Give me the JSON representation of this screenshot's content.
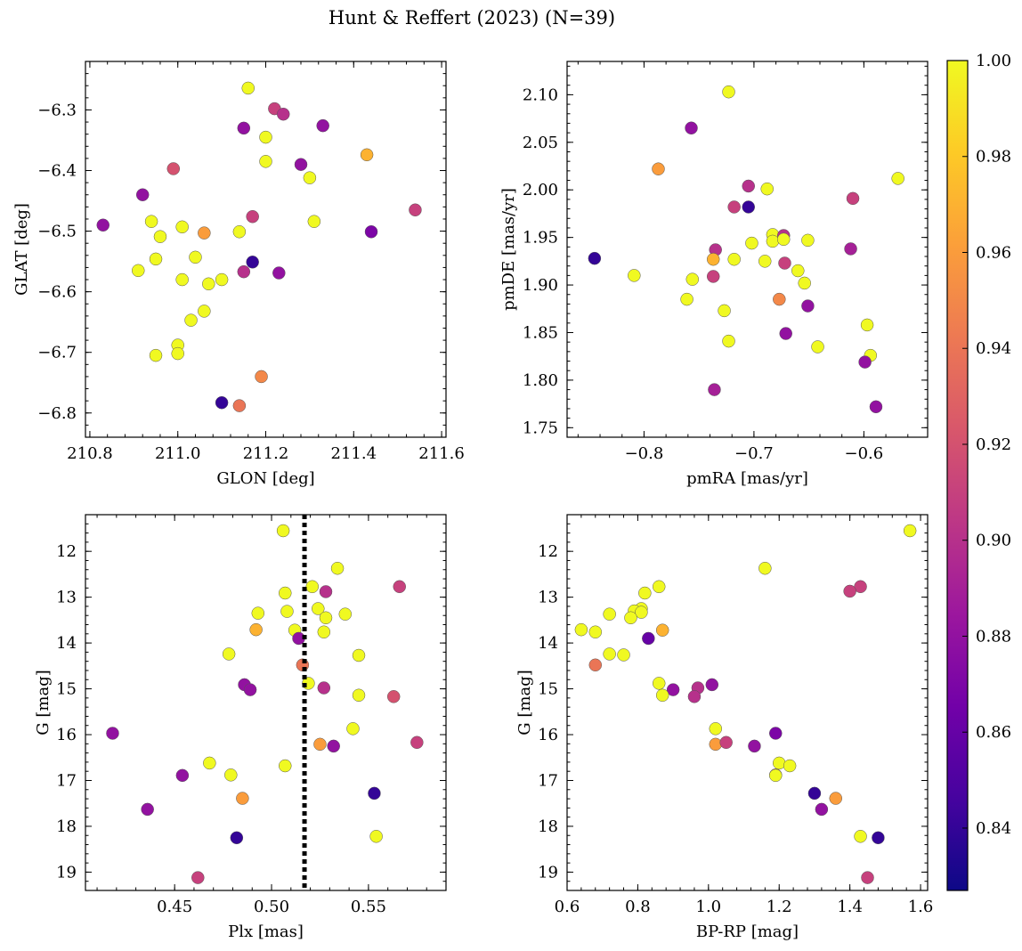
{
  "figure": {
    "title": "Hunt & Reffert (2023) (N=39)",
    "colormap": "plasma",
    "colorbar": {
      "range": [
        0.827,
        1.0
      ],
      "ticks": [
        "0.84",
        "0.86",
        "0.88",
        "0.90",
        "0.92",
        "0.94",
        "0.96",
        "0.98",
        "1.00"
      ],
      "stops": [
        "#0d0887",
        "#46039f",
        "#7201a8",
        "#9c179e",
        "#bd3786",
        "#d8576b",
        "#ed7953",
        "#fb9f3a",
        "#fdca26",
        "#f0f921"
      ]
    }
  },
  "chart_data": [
    {
      "type": "scatter",
      "xlabel": "GLON [deg]",
      "ylabel": "GLAT [deg]",
      "xlim": [
        210.79,
        211.61
      ],
      "ylim": [
        -6.84,
        -6.22
      ],
      "y_inverted": false,
      "xticks": [
        "210.8",
        "211.0",
        "211.2",
        "211.4",
        "211.6"
      ],
      "yticks": [
        "−6.3",
        "−6.4",
        "−6.5",
        "−6.6",
        "−6.7",
        "−6.8"
      ],
      "points": [
        {
          "x": 210.83,
          "y": -6.49,
          "c": 0.88
        },
        {
          "x": 210.92,
          "y": -6.44,
          "c": 0.88
        },
        {
          "x": 210.99,
          "y": -6.397,
          "c": 0.92
        },
        {
          "x": 211.15,
          "y": -6.33,
          "c": 0.88
        },
        {
          "x": 211.16,
          "y": -6.264,
          "c": 1.0
        },
        {
          "x": 211.22,
          "y": -6.298,
          "c": 0.91
        },
        {
          "x": 211.24,
          "y": -6.307,
          "c": 0.9
        },
        {
          "x": 211.33,
          "y": -6.326,
          "c": 0.88
        },
        {
          "x": 211.2,
          "y": -6.345,
          "c": 1.0
        },
        {
          "x": 211.2,
          "y": -6.385,
          "c": 1.0
        },
        {
          "x": 211.28,
          "y": -6.39,
          "c": 0.88
        },
        {
          "x": 211.3,
          "y": -6.412,
          "c": 1.0
        },
        {
          "x": 211.43,
          "y": -6.374,
          "c": 0.97
        },
        {
          "x": 211.54,
          "y": -6.465,
          "c": 0.91
        },
        {
          "x": 211.44,
          "y": -6.501,
          "c": 0.87
        },
        {
          "x": 211.31,
          "y": -6.484,
          "c": 1.0
        },
        {
          "x": 211.17,
          "y": -6.476,
          "c": 0.91
        },
        {
          "x": 211.17,
          "y": -6.551,
          "c": 0.84
        },
        {
          "x": 211.14,
          "y": -6.501,
          "c": 1.0
        },
        {
          "x": 211.23,
          "y": -6.569,
          "c": 0.88
        },
        {
          "x": 211.15,
          "y": -6.567,
          "c": 0.9
        },
        {
          "x": 211.06,
          "y": -6.503,
          "c": 0.96
        },
        {
          "x": 211.01,
          "y": -6.493,
          "c": 1.0
        },
        {
          "x": 211.04,
          "y": -6.543,
          "c": 1.0
        },
        {
          "x": 210.94,
          "y": -6.484,
          "c": 1.0
        },
        {
          "x": 210.96,
          "y": -6.509,
          "c": 1.0
        },
        {
          "x": 210.95,
          "y": -6.546,
          "c": 1.0
        },
        {
          "x": 210.91,
          "y": -6.565,
          "c": 1.0
        },
        {
          "x": 211.01,
          "y": -6.58,
          "c": 1.0
        },
        {
          "x": 211.07,
          "y": -6.587,
          "c": 1.0
        },
        {
          "x": 211.1,
          "y": -6.58,
          "c": 1.0
        },
        {
          "x": 211.06,
          "y": -6.632,
          "c": 1.0
        },
        {
          "x": 211.03,
          "y": -6.647,
          "c": 1.0
        },
        {
          "x": 211.0,
          "y": -6.688,
          "c": 1.0
        },
        {
          "x": 211.0,
          "y": -6.702,
          "c": 1.0
        },
        {
          "x": 210.95,
          "y": -6.705,
          "c": 1.0
        },
        {
          "x": 211.19,
          "y": -6.74,
          "c": 0.95
        },
        {
          "x": 211.1,
          "y": -6.783,
          "c": 0.84
        },
        {
          "x": 211.14,
          "y": -6.788,
          "c": 0.94
        }
      ]
    },
    {
      "type": "scatter",
      "xlabel": "pmRA [mas/yr]",
      "ylabel": "pmDE [mas/yr]",
      "xlim": [
        -0.87,
        -0.542
      ],
      "ylim": [
        1.74,
        2.135
      ],
      "y_inverted": false,
      "xticks": [
        "−0.8",
        "−0.7",
        "−0.6"
      ],
      "yticks": [
        "1.75",
        "1.80",
        "1.85",
        "1.90",
        "1.95",
        "2.00",
        "2.05",
        "2.10"
      ],
      "points": [
        {
          "x": -0.845,
          "y": 1.928,
          "c": 0.84
        },
        {
          "x": -0.809,
          "y": 1.91,
          "c": 1.0
        },
        {
          "x": -0.787,
          "y": 2.022,
          "c": 0.96
        },
        {
          "x": -0.757,
          "y": 2.065,
          "c": 0.88
        },
        {
          "x": -0.723,
          "y": 2.103,
          "c": 1.0
        },
        {
          "x": -0.705,
          "y": 2.004,
          "c": 0.9
        },
        {
          "x": -0.688,
          "y": 2.001,
          "c": 1.0
        },
        {
          "x": -0.718,
          "y": 1.982,
          "c": 0.91
        },
        {
          "x": -0.705,
          "y": 1.982,
          "c": 0.84
        },
        {
          "x": -0.735,
          "y": 1.937,
          "c": 0.9
        },
        {
          "x": -0.702,
          "y": 1.944,
          "c": 1.0
        },
        {
          "x": -0.683,
          "y": 1.953,
          "c": 1.0
        },
        {
          "x": -0.673,
          "y": 1.952,
          "c": 0.9
        },
        {
          "x": -0.683,
          "y": 1.946,
          "c": 1.0
        },
        {
          "x": -0.673,
          "y": 1.948,
          "c": 1.0
        },
        {
          "x": -0.651,
          "y": 1.947,
          "c": 1.0
        },
        {
          "x": -0.737,
          "y": 1.927,
          "c": 0.97
        },
        {
          "x": -0.718,
          "y": 1.927,
          "c": 1.0
        },
        {
          "x": -0.69,
          "y": 1.925,
          "c": 1.0
        },
        {
          "x": -0.672,
          "y": 1.923,
          "c": 0.91
        },
        {
          "x": -0.737,
          "y": 1.909,
          "c": 0.91
        },
        {
          "x": -0.756,
          "y": 1.906,
          "c": 1.0
        },
        {
          "x": -0.761,
          "y": 1.885,
          "c": 1.0
        },
        {
          "x": -0.677,
          "y": 1.885,
          "c": 0.95
        },
        {
          "x": -0.66,
          "y": 1.915,
          "c": 1.0
        },
        {
          "x": -0.654,
          "y": 1.902,
          "c": 1.0
        },
        {
          "x": -0.727,
          "y": 1.873,
          "c": 1.0
        },
        {
          "x": -0.651,
          "y": 1.878,
          "c": 0.88
        },
        {
          "x": -0.671,
          "y": 1.849,
          "c": 0.88
        },
        {
          "x": -0.723,
          "y": 1.841,
          "c": 1.0
        },
        {
          "x": -0.642,
          "y": 1.835,
          "c": 1.0
        },
        {
          "x": -0.61,
          "y": 1.991,
          "c": 0.91
        },
        {
          "x": -0.569,
          "y": 2.012,
          "c": 1.0
        },
        {
          "x": -0.612,
          "y": 1.938,
          "c": 0.89
        },
        {
          "x": -0.597,
          "y": 1.858,
          "c": 1.0
        },
        {
          "x": -0.594,
          "y": 1.826,
          "c": 1.0
        },
        {
          "x": -0.599,
          "y": 1.819,
          "c": 0.88
        },
        {
          "x": -0.736,
          "y": 1.79,
          "c": 0.89
        },
        {
          "x": -0.589,
          "y": 1.772,
          "c": 0.88
        }
      ]
    },
    {
      "type": "scatter",
      "xlabel": "Plx [mas]",
      "ylabel": "G [mag]",
      "xlim": [
        0.404,
        0.59
      ],
      "ylim": [
        19.4,
        11.2
      ],
      "y_inverted": true,
      "vline": 0.517,
      "xticks": [
        "0.45",
        "0.50",
        "0.55"
      ],
      "yticks": [
        "12",
        "13",
        "14",
        "15",
        "16",
        "17",
        "18",
        "19"
      ],
      "points": [
        {
          "x": 0.506,
          "y": 11.55,
          "c": 1.0
        },
        {
          "x": 0.534,
          "y": 12.37,
          "c": 1.0
        },
        {
          "x": 0.521,
          "y": 12.77,
          "c": 1.0
        },
        {
          "x": 0.566,
          "y": 12.77,
          "c": 0.91
        },
        {
          "x": 0.507,
          "y": 12.91,
          "c": 1.0
        },
        {
          "x": 0.528,
          "y": 12.88,
          "c": 0.9
        },
        {
          "x": 0.524,
          "y": 13.25,
          "c": 1.0
        },
        {
          "x": 0.508,
          "y": 13.31,
          "c": 1.0
        },
        {
          "x": 0.493,
          "y": 13.35,
          "c": 1.0
        },
        {
          "x": 0.538,
          "y": 13.37,
          "c": 1.0
        },
        {
          "x": 0.528,
          "y": 13.45,
          "c": 1.0
        },
        {
          "x": 0.492,
          "y": 13.71,
          "c": 0.97
        },
        {
          "x": 0.512,
          "y": 13.72,
          "c": 1.0
        },
        {
          "x": 0.527,
          "y": 13.76,
          "c": 1.0
        },
        {
          "x": 0.514,
          "y": 13.9,
          "c": 0.88
        },
        {
          "x": 0.478,
          "y": 14.24,
          "c": 1.0
        },
        {
          "x": 0.545,
          "y": 14.27,
          "c": 1.0
        },
        {
          "x": 0.516,
          "y": 14.48,
          "c": 0.94
        },
        {
          "x": 0.519,
          "y": 14.88,
          "c": 1.0
        },
        {
          "x": 0.486,
          "y": 14.91,
          "c": 0.88
        },
        {
          "x": 0.489,
          "y": 15.02,
          "c": 0.88
        },
        {
          "x": 0.527,
          "y": 14.98,
          "c": 0.9
        },
        {
          "x": 0.545,
          "y": 15.14,
          "c": 1.0
        },
        {
          "x": 0.563,
          "y": 15.17,
          "c": 0.92
        },
        {
          "x": 0.542,
          "y": 15.87,
          "c": 1.0
        },
        {
          "x": 0.418,
          "y": 15.97,
          "c": 0.88
        },
        {
          "x": 0.575,
          "y": 16.17,
          "c": 0.91
        },
        {
          "x": 0.525,
          "y": 16.21,
          "c": 0.96
        },
        {
          "x": 0.532,
          "y": 16.25,
          "c": 0.88
        },
        {
          "x": 0.468,
          "y": 16.62,
          "c": 1.0
        },
        {
          "x": 0.507,
          "y": 16.68,
          "c": 1.0
        },
        {
          "x": 0.454,
          "y": 16.89,
          "c": 0.88
        },
        {
          "x": 0.479,
          "y": 16.88,
          "c": 1.0
        },
        {
          "x": 0.485,
          "y": 17.39,
          "c": 0.96
        },
        {
          "x": 0.553,
          "y": 17.28,
          "c": 0.84
        },
        {
          "x": 0.436,
          "y": 17.63,
          "c": 0.88
        },
        {
          "x": 0.482,
          "y": 18.25,
          "c": 0.84
        },
        {
          "x": 0.554,
          "y": 18.22,
          "c": 1.0
        },
        {
          "x": 0.462,
          "y": 19.12,
          "c": 0.91
        }
      ]
    },
    {
      "type": "scatter",
      "xlabel": "BP-RP [mag]",
      "ylabel": "G [mag]",
      "xlim": [
        0.6,
        1.62
      ],
      "ylim": [
        19.4,
        11.2
      ],
      "y_inverted": true,
      "xticks": [
        "0.6",
        "0.8",
        "1.0",
        "1.2",
        "1.4",
        "1.6"
      ],
      "yticks": [
        "12",
        "13",
        "14",
        "15",
        "16",
        "17",
        "18",
        "19"
      ],
      "points": [
        {
          "x": 1.57,
          "y": 11.55,
          "c": 1.0
        },
        {
          "x": 1.16,
          "y": 12.37,
          "c": 1.0
        },
        {
          "x": 1.43,
          "y": 12.77,
          "c": 0.91
        },
        {
          "x": 1.4,
          "y": 12.87,
          "c": 0.91
        },
        {
          "x": 0.86,
          "y": 12.77,
          "c": 1.0
        },
        {
          "x": 0.82,
          "y": 12.91,
          "c": 1.0
        },
        {
          "x": 0.81,
          "y": 13.25,
          "c": 1.0
        },
        {
          "x": 0.79,
          "y": 13.3,
          "c": 1.0
        },
        {
          "x": 0.81,
          "y": 13.33,
          "c": 1.0
        },
        {
          "x": 0.72,
          "y": 13.37,
          "c": 1.0
        },
        {
          "x": 0.78,
          "y": 13.45,
          "c": 1.0
        },
        {
          "x": 0.64,
          "y": 13.71,
          "c": 1.0
        },
        {
          "x": 0.68,
          "y": 13.76,
          "c": 1.0
        },
        {
          "x": 0.87,
          "y": 13.72,
          "c": 0.97
        },
        {
          "x": 0.83,
          "y": 13.9,
          "c": 0.86
        },
        {
          "x": 0.72,
          "y": 14.24,
          "c": 1.0
        },
        {
          "x": 0.76,
          "y": 14.26,
          "c": 1.0
        },
        {
          "x": 0.68,
          "y": 14.48,
          "c": 0.94
        },
        {
          "x": 0.86,
          "y": 14.88,
          "c": 1.0
        },
        {
          "x": 1.01,
          "y": 14.91,
          "c": 0.88
        },
        {
          "x": 0.97,
          "y": 14.98,
          "c": 0.9
        },
        {
          "x": 0.9,
          "y": 15.02,
          "c": 0.88
        },
        {
          "x": 0.87,
          "y": 15.14,
          "c": 1.0
        },
        {
          "x": 0.96,
          "y": 15.17,
          "c": 0.9
        },
        {
          "x": 1.02,
          "y": 15.87,
          "c": 1.0
        },
        {
          "x": 1.19,
          "y": 15.97,
          "c": 0.87
        },
        {
          "x": 1.02,
          "y": 16.21,
          "c": 0.96
        },
        {
          "x": 1.05,
          "y": 16.17,
          "c": 0.91
        },
        {
          "x": 1.13,
          "y": 16.25,
          "c": 0.88
        },
        {
          "x": 1.2,
          "y": 16.62,
          "c": 1.0
        },
        {
          "x": 1.23,
          "y": 16.68,
          "c": 1.0
        },
        {
          "x": 1.19,
          "y": 16.88,
          "c": 0.91
        },
        {
          "x": 1.19,
          "y": 16.89,
          "c": 1.0
        },
        {
          "x": 1.3,
          "y": 17.28,
          "c": 0.84
        },
        {
          "x": 1.36,
          "y": 17.39,
          "c": 0.96
        },
        {
          "x": 1.32,
          "y": 17.63,
          "c": 0.88
        },
        {
          "x": 1.43,
          "y": 18.22,
          "c": 1.0
        },
        {
          "x": 1.48,
          "y": 18.25,
          "c": 0.84
        },
        {
          "x": 1.45,
          "y": 19.12,
          "c": 0.91
        }
      ]
    }
  ]
}
